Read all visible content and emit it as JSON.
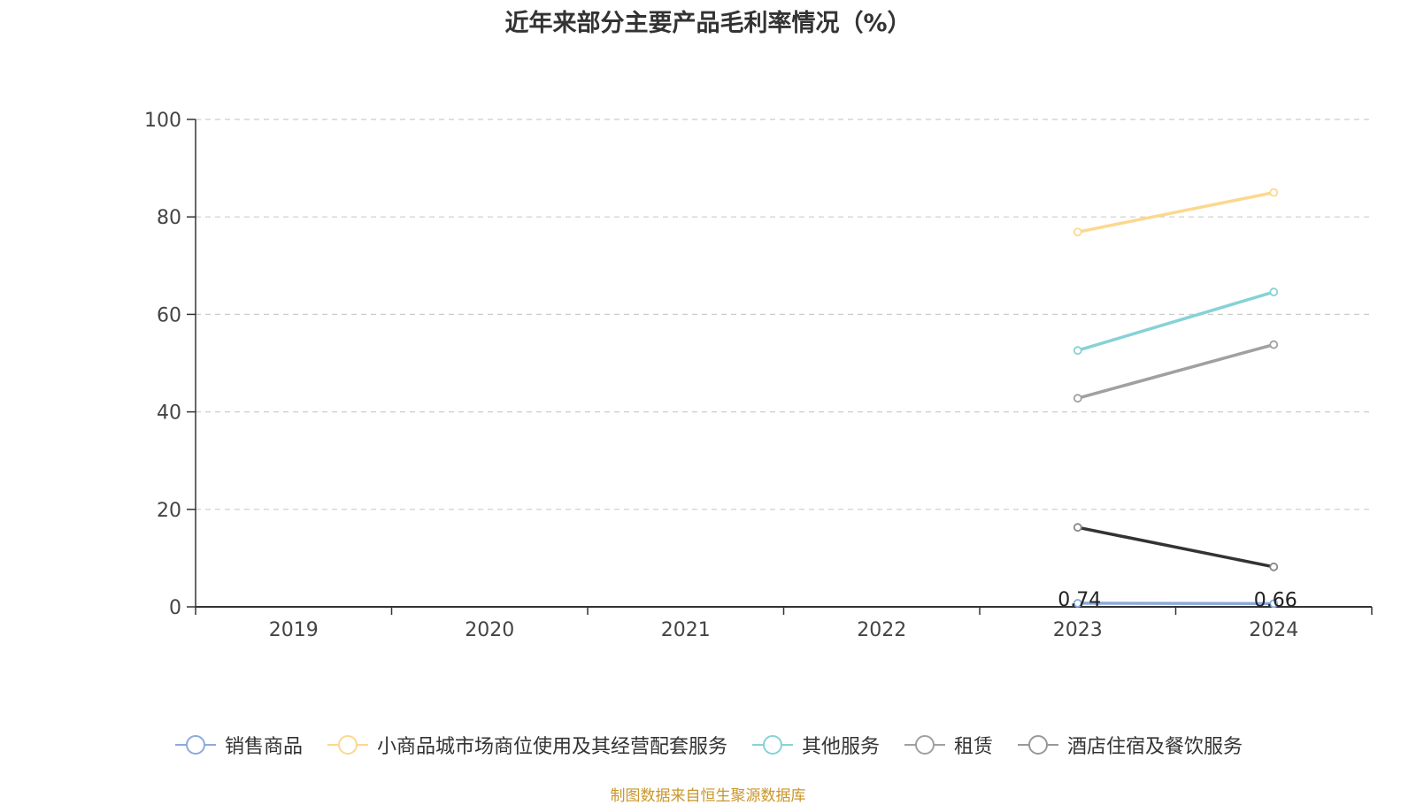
{
  "title": "近年来部分主要产品毛利率情况（%）",
  "source": "制图数据来自恒生聚源数据库",
  "chart_data": {
    "type": "line",
    "title": "近年来部分主要产品毛利率情况（%）",
    "categories": [
      "2019",
      "2020",
      "2021",
      "2022",
      "2023",
      "2024"
    ],
    "ylim": [
      0,
      100
    ],
    "yticks": [
      0,
      20,
      40,
      60,
      80,
      100
    ],
    "grid": true,
    "legend_position": "bottom",
    "series": [
      {
        "name": "销售商品",
        "color": "#8eaadb",
        "values": [
          null,
          null,
          null,
          null,
          0.74,
          0.66
        ],
        "labels": [
          "",
          "",
          "",
          "",
          "0.74",
          "0.66"
        ]
      },
      {
        "name": "小商品城市场商位使用及其经营配套服务",
        "color": "#fcd88f",
        "values": [
          null,
          null,
          null,
          null,
          76.9,
          85.0
        ],
        "labels": []
      },
      {
        "name": "其他服务",
        "color": "#86d2d6",
        "values": [
          null,
          null,
          null,
          null,
          52.6,
          64.6
        ],
        "labels": []
      },
      {
        "name": "租赁",
        "color": "#a0a0a0",
        "values": [
          null,
          null,
          null,
          null,
          42.8,
          53.8
        ],
        "labels": []
      },
      {
        "name": "酒店住宿及餐饮服务",
        "color": "#333333",
        "values": [
          null,
          null,
          null,
          null,
          16.3,
          8.2
        ],
        "labels": []
      }
    ]
  }
}
